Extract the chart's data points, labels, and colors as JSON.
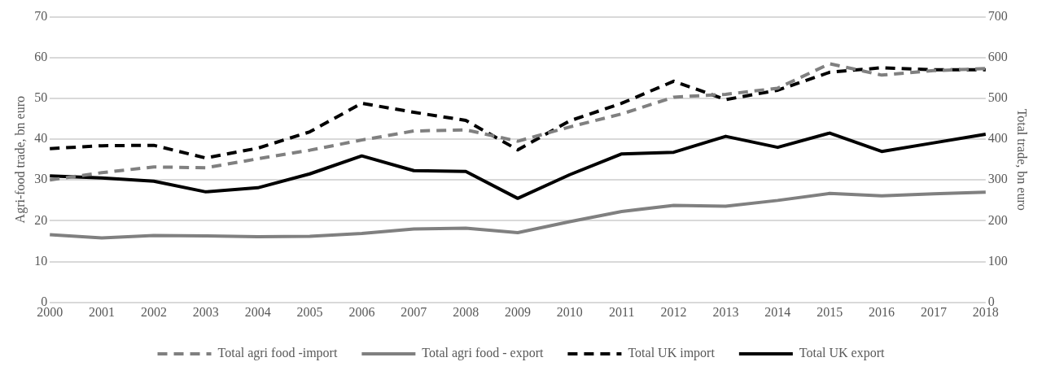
{
  "chart_data": {
    "type": "line",
    "ylabel": "Agri-food trade, bn euro",
    "y2label": "Total trade, bn euro",
    "categories": [
      "2000",
      "2001",
      "2002",
      "2003",
      "2004",
      "2005",
      "2006",
      "2007",
      "2008",
      "2009",
      "2010",
      "2011",
      "2012",
      "2013",
      "2014",
      "2015",
      "2016",
      "2017",
      "2018"
    ],
    "ylim": [
      0,
      70
    ],
    "yticks": [
      0,
      10,
      20,
      30,
      40,
      50,
      60,
      70
    ],
    "y2lim": [
      0,
      700
    ],
    "y2ticks": [
      0,
      100,
      200,
      300,
      400,
      500,
      600,
      700
    ],
    "grid": "y",
    "legend": "bottom",
    "marker": "none",
    "series": [
      {
        "name": "Total agri food -import",
        "color": "#808080",
        "line_style": "dashed",
        "values": [
          30,
          31.8,
          33.2,
          33,
          35.2,
          37.3,
          39.8,
          42,
          42.3,
          39.5,
          43,
          46.2,
          50.3,
          51,
          52.5,
          58.5,
          55.7,
          56.8,
          57.3
        ]
      },
      {
        "name": "Total agri food - export",
        "color": "#808080",
        "line_style": "solid",
        "values": [
          16.6,
          15.8,
          16.4,
          16.3,
          16.1,
          16.2,
          16.9,
          18,
          18.2,
          17.1,
          19.8,
          22.3,
          23.8,
          23.6,
          25,
          26.7,
          26.1,
          26.6,
          27
        ]
      },
      {
        "name": "Total UK import",
        "color": "#000000",
        "line_style": "dashed",
        "axis": "y2",
        "values": [
          377,
          384,
          385,
          354,
          378,
          418,
          488,
          466,
          446,
          374,
          445,
          488,
          542,
          497,
          520,
          564,
          575,
          570,
          570
        ]
      },
      {
        "name": "Total UK export",
        "color": "#000000",
        "line_style": "solid",
        "axis": "y2",
        "values": [
          310,
          305,
          297,
          271,
          281,
          315,
          359,
          323,
          321,
          255,
          313,
          364,
          368,
          407,
          380,
          415,
          370,
          391,
          412
        ]
      }
    ]
  }
}
